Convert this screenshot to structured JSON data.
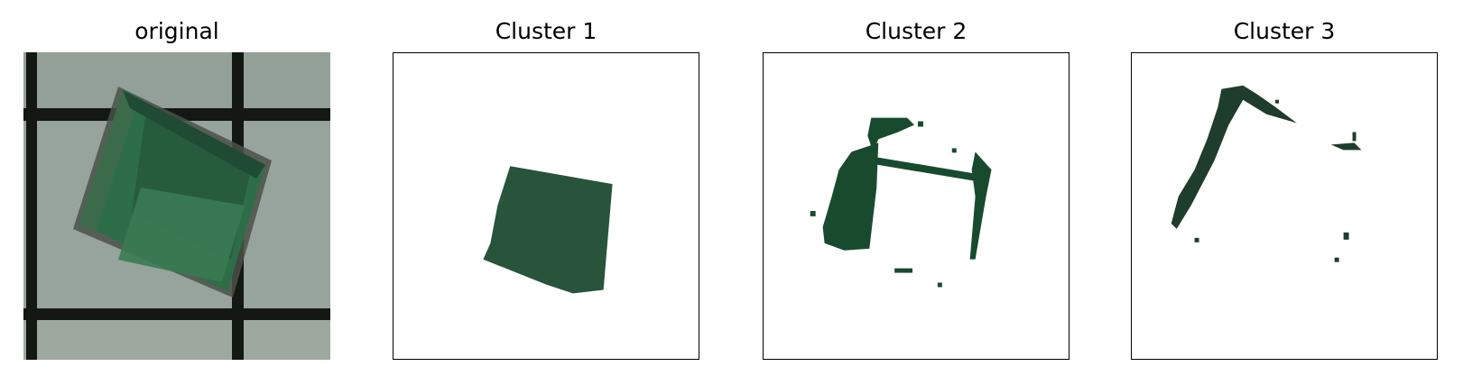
{
  "panels": [
    {
      "title": "original"
    },
    {
      "title": "Cluster 1"
    },
    {
      "title": "Cluster 2"
    },
    {
      "title": "Cluster 3"
    }
  ],
  "colors": {
    "cluster1_fill": "#27543a",
    "cluster2_fill": "#184b2e",
    "cluster3_fill": "#1f3d2c",
    "background_tile": "#99a59c",
    "grid_line": "#141812",
    "square_green": "#2d6e48"
  }
}
